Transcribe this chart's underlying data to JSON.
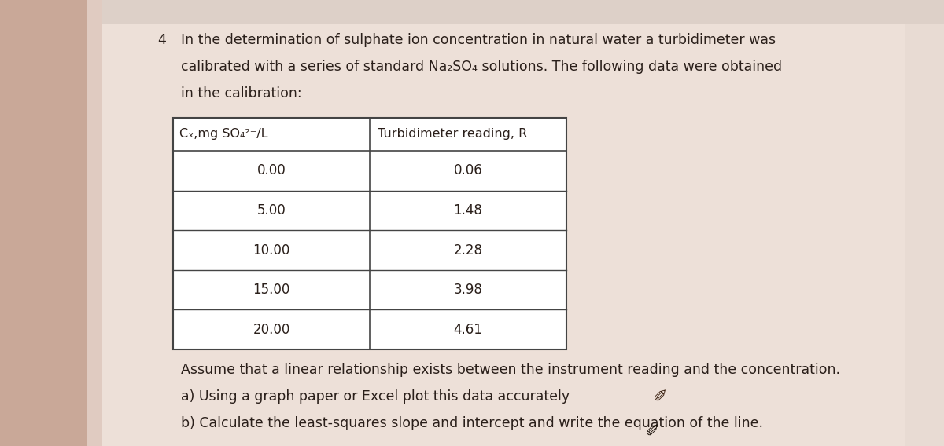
{
  "question_number": "4",
  "line1": "In the determination of sulphate ion concentration in natural water a turbidimeter was",
  "line2": "calibrated with a series of standard Na₂SO₄ solutions. The following data were obtained",
  "line3": "in the calibration:",
  "col1_header": "Cₓ,mg SO₄²⁻/L",
  "col2_header": "Turbidimeter reading, R",
  "col1_values": [
    "0.00",
    "5.00",
    "10.00",
    "15.00",
    "20.00"
  ],
  "col2_values": [
    "0.06",
    "1.48",
    "2.28",
    "3.98",
    "4.61"
  ],
  "assume_text": "Assume that a linear relationship exists between the instrument reading and the concentration.",
  "part_a": "a) Using a graph paper or Excel plot this data accurately",
  "part_b": "b) Calculate the least-squares slope and intercept and write the equation of the line.",
  "bg_color_left": "#c9a898",
  "bg_color_main": "#e8d8cc",
  "paper_color": "#ede0d8",
  "paper_color2": "#e4d4cc",
  "text_color": "#2a1f1a",
  "table_border_color": "#444444",
  "font_size_body": 12.5,
  "font_size_table_header": 11.5,
  "font_size_table_data": 12.0
}
